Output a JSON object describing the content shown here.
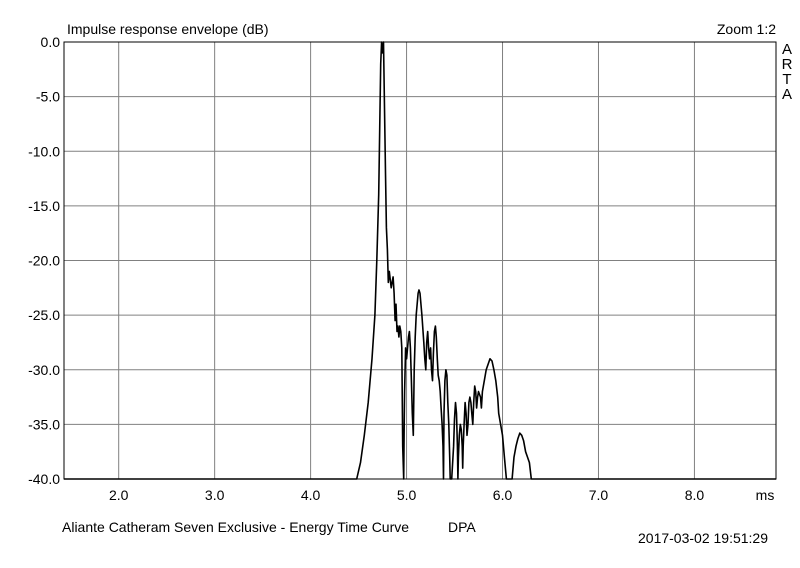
{
  "header": {
    "title": "Impulse response envelope (dB)",
    "zoom": "Zoom 1:2",
    "brand_letters": [
      "A",
      "R",
      "T",
      "A"
    ]
  },
  "footer": {
    "caption": "Aliante Catheram Seven Exclusive - Energy Time Curve",
    "tag": "DPA",
    "timestamp": "2017-03-02  19:51:29"
  },
  "chart_data": {
    "type": "line",
    "title": "Impulse response envelope (dB)",
    "xlabel": "ms",
    "ylabel": "",
    "xlim": [
      1.43,
      8.85
    ],
    "ylim": [
      -40,
      0
    ],
    "x_ticks": [
      2.0,
      3.0,
      4.0,
      5.0,
      6.0,
      7.0,
      8.0
    ],
    "x_tick_labels": [
      "2.0",
      "3.0",
      "4.0",
      "5.0",
      "6.0",
      "7.0",
      "8.0"
    ],
    "x_unit_label": "ms",
    "y_ticks": [
      0,
      -5,
      -10,
      -15,
      -20,
      -25,
      -30,
      -35,
      -40
    ],
    "y_tick_labels": [
      "0.0",
      "-5.0",
      "-10.0",
      "-15.0",
      "-20.0",
      "-25.0",
      "-30.0",
      "-35.0",
      "-40.0"
    ],
    "grid": true,
    "line_color": "#000000",
    "grid_color": "#808080",
    "series": [
      {
        "values": [
          [
            1.43,
            -40
          ],
          [
            4.48,
            -40
          ],
          [
            4.52,
            -38.5
          ],
          [
            4.56,
            -36
          ],
          [
            4.6,
            -33
          ],
          [
            4.64,
            -29
          ],
          [
            4.67,
            -25
          ],
          [
            4.69,
            -20
          ],
          [
            4.71,
            -14
          ],
          [
            4.72,
            -8
          ],
          [
            4.73,
            -2
          ],
          [
            4.74,
            0
          ],
          [
            4.75,
            -1
          ],
          [
            4.76,
            0
          ],
          [
            4.77,
            -6
          ],
          [
            4.78,
            -12
          ],
          [
            4.79,
            -17
          ],
          [
            4.8,
            -19
          ],
          [
            4.81,
            -22
          ],
          [
            4.82,
            -21
          ],
          [
            4.84,
            -22.5
          ],
          [
            4.86,
            -21.5
          ],
          [
            4.87,
            -23
          ],
          [
            4.88,
            -25.5
          ],
          [
            4.89,
            -24
          ],
          [
            4.9,
            -26.5
          ],
          [
            4.91,
            -26
          ],
          [
            4.92,
            -27
          ],
          [
            4.93,
            -26
          ],
          [
            4.94,
            -26.5
          ],
          [
            4.95,
            -28
          ],
          [
            4.96,
            -37
          ],
          [
            4.97,
            -40
          ],
          [
            4.975,
            -35
          ],
          [
            4.98,
            -32
          ],
          [
            4.99,
            -28
          ],
          [
            5.0,
            -29
          ],
          [
            5.02,
            -27
          ],
          [
            5.03,
            -26.5
          ],
          [
            5.04,
            -28
          ],
          [
            5.05,
            -31
          ],
          [
            5.06,
            -34
          ],
          [
            5.07,
            -36
          ],
          [
            5.08,
            -30
          ],
          [
            5.09,
            -27
          ],
          [
            5.1,
            -25
          ],
          [
            5.12,
            -23
          ],
          [
            5.13,
            -22.7
          ],
          [
            5.14,
            -23
          ],
          [
            5.16,
            -25
          ],
          [
            5.18,
            -27.5
          ],
          [
            5.19,
            -29
          ],
          [
            5.2,
            -30
          ],
          [
            5.21,
            -27.5
          ],
          [
            5.22,
            -26.5
          ],
          [
            5.23,
            -28
          ],
          [
            5.24,
            -29
          ],
          [
            5.25,
            -28
          ],
          [
            5.26,
            -30
          ],
          [
            5.27,
            -31
          ],
          [
            5.28,
            -28.5
          ],
          [
            5.29,
            -26.5
          ],
          [
            5.3,
            -26
          ],
          [
            5.31,
            -27
          ],
          [
            5.32,
            -29
          ],
          [
            5.33,
            -30.5
          ],
          [
            5.34,
            -31
          ],
          [
            5.35,
            -32
          ],
          [
            5.36,
            -33.5
          ],
          [
            5.37,
            -35
          ],
          [
            5.38,
            -37
          ],
          [
            5.385,
            -40
          ],
          [
            5.39,
            -34
          ],
          [
            5.4,
            -31
          ],
          [
            5.41,
            -30
          ],
          [
            5.42,
            -30.5
          ],
          [
            5.43,
            -33
          ],
          [
            5.44,
            -35
          ],
          [
            5.45,
            -38
          ],
          [
            5.455,
            -40
          ],
          [
            5.47,
            -40
          ],
          [
            5.49,
            -37
          ],
          [
            5.5,
            -34.5
          ],
          [
            5.51,
            -33
          ],
          [
            5.52,
            -34
          ],
          [
            5.53,
            -37
          ],
          [
            5.535,
            -40
          ],
          [
            5.54,
            -38
          ],
          [
            5.55,
            -36
          ],
          [
            5.56,
            -35
          ],
          [
            5.57,
            -35.5
          ],
          [
            5.58,
            -37
          ],
          [
            5.585,
            -39
          ],
          [
            5.59,
            -37
          ],
          [
            5.6,
            -35
          ],
          [
            5.61,
            -33
          ],
          [
            5.62,
            -34
          ],
          [
            5.63,
            -36
          ],
          [
            5.64,
            -35
          ],
          [
            5.65,
            -33
          ],
          [
            5.66,
            -32.5
          ],
          [
            5.67,
            -33
          ],
          [
            5.68,
            -34
          ],
          [
            5.69,
            -35
          ],
          [
            5.7,
            -33
          ],
          [
            5.71,
            -31.5
          ],
          [
            5.72,
            -32
          ],
          [
            5.73,
            -33.5
          ],
          [
            5.74,
            -32.5
          ],
          [
            5.75,
            -32
          ],
          [
            5.77,
            -32.5
          ],
          [
            5.78,
            -33.5
          ],
          [
            5.79,
            -32
          ],
          [
            5.81,
            -31
          ],
          [
            5.83,
            -30
          ],
          [
            5.85,
            -29.5
          ],
          [
            5.87,
            -29
          ],
          [
            5.89,
            -29.2
          ],
          [
            5.91,
            -30
          ],
          [
            5.93,
            -31
          ],
          [
            5.95,
            -32.5
          ],
          [
            5.96,
            -34
          ],
          [
            5.98,
            -35
          ],
          [
            6.0,
            -36
          ],
          [
            6.02,
            -38
          ],
          [
            6.04,
            -40
          ],
          [
            6.1,
            -40
          ],
          [
            6.12,
            -38
          ],
          [
            6.14,
            -37
          ],
          [
            6.16,
            -36.3
          ],
          [
            6.18,
            -35.8
          ],
          [
            6.2,
            -36
          ],
          [
            6.22,
            -36.5
          ],
          [
            6.24,
            -37.5
          ],
          [
            6.26,
            -38
          ],
          [
            6.28,
            -38.5
          ],
          [
            6.3,
            -40
          ],
          [
            8.85,
            -40
          ]
        ]
      }
    ]
  }
}
